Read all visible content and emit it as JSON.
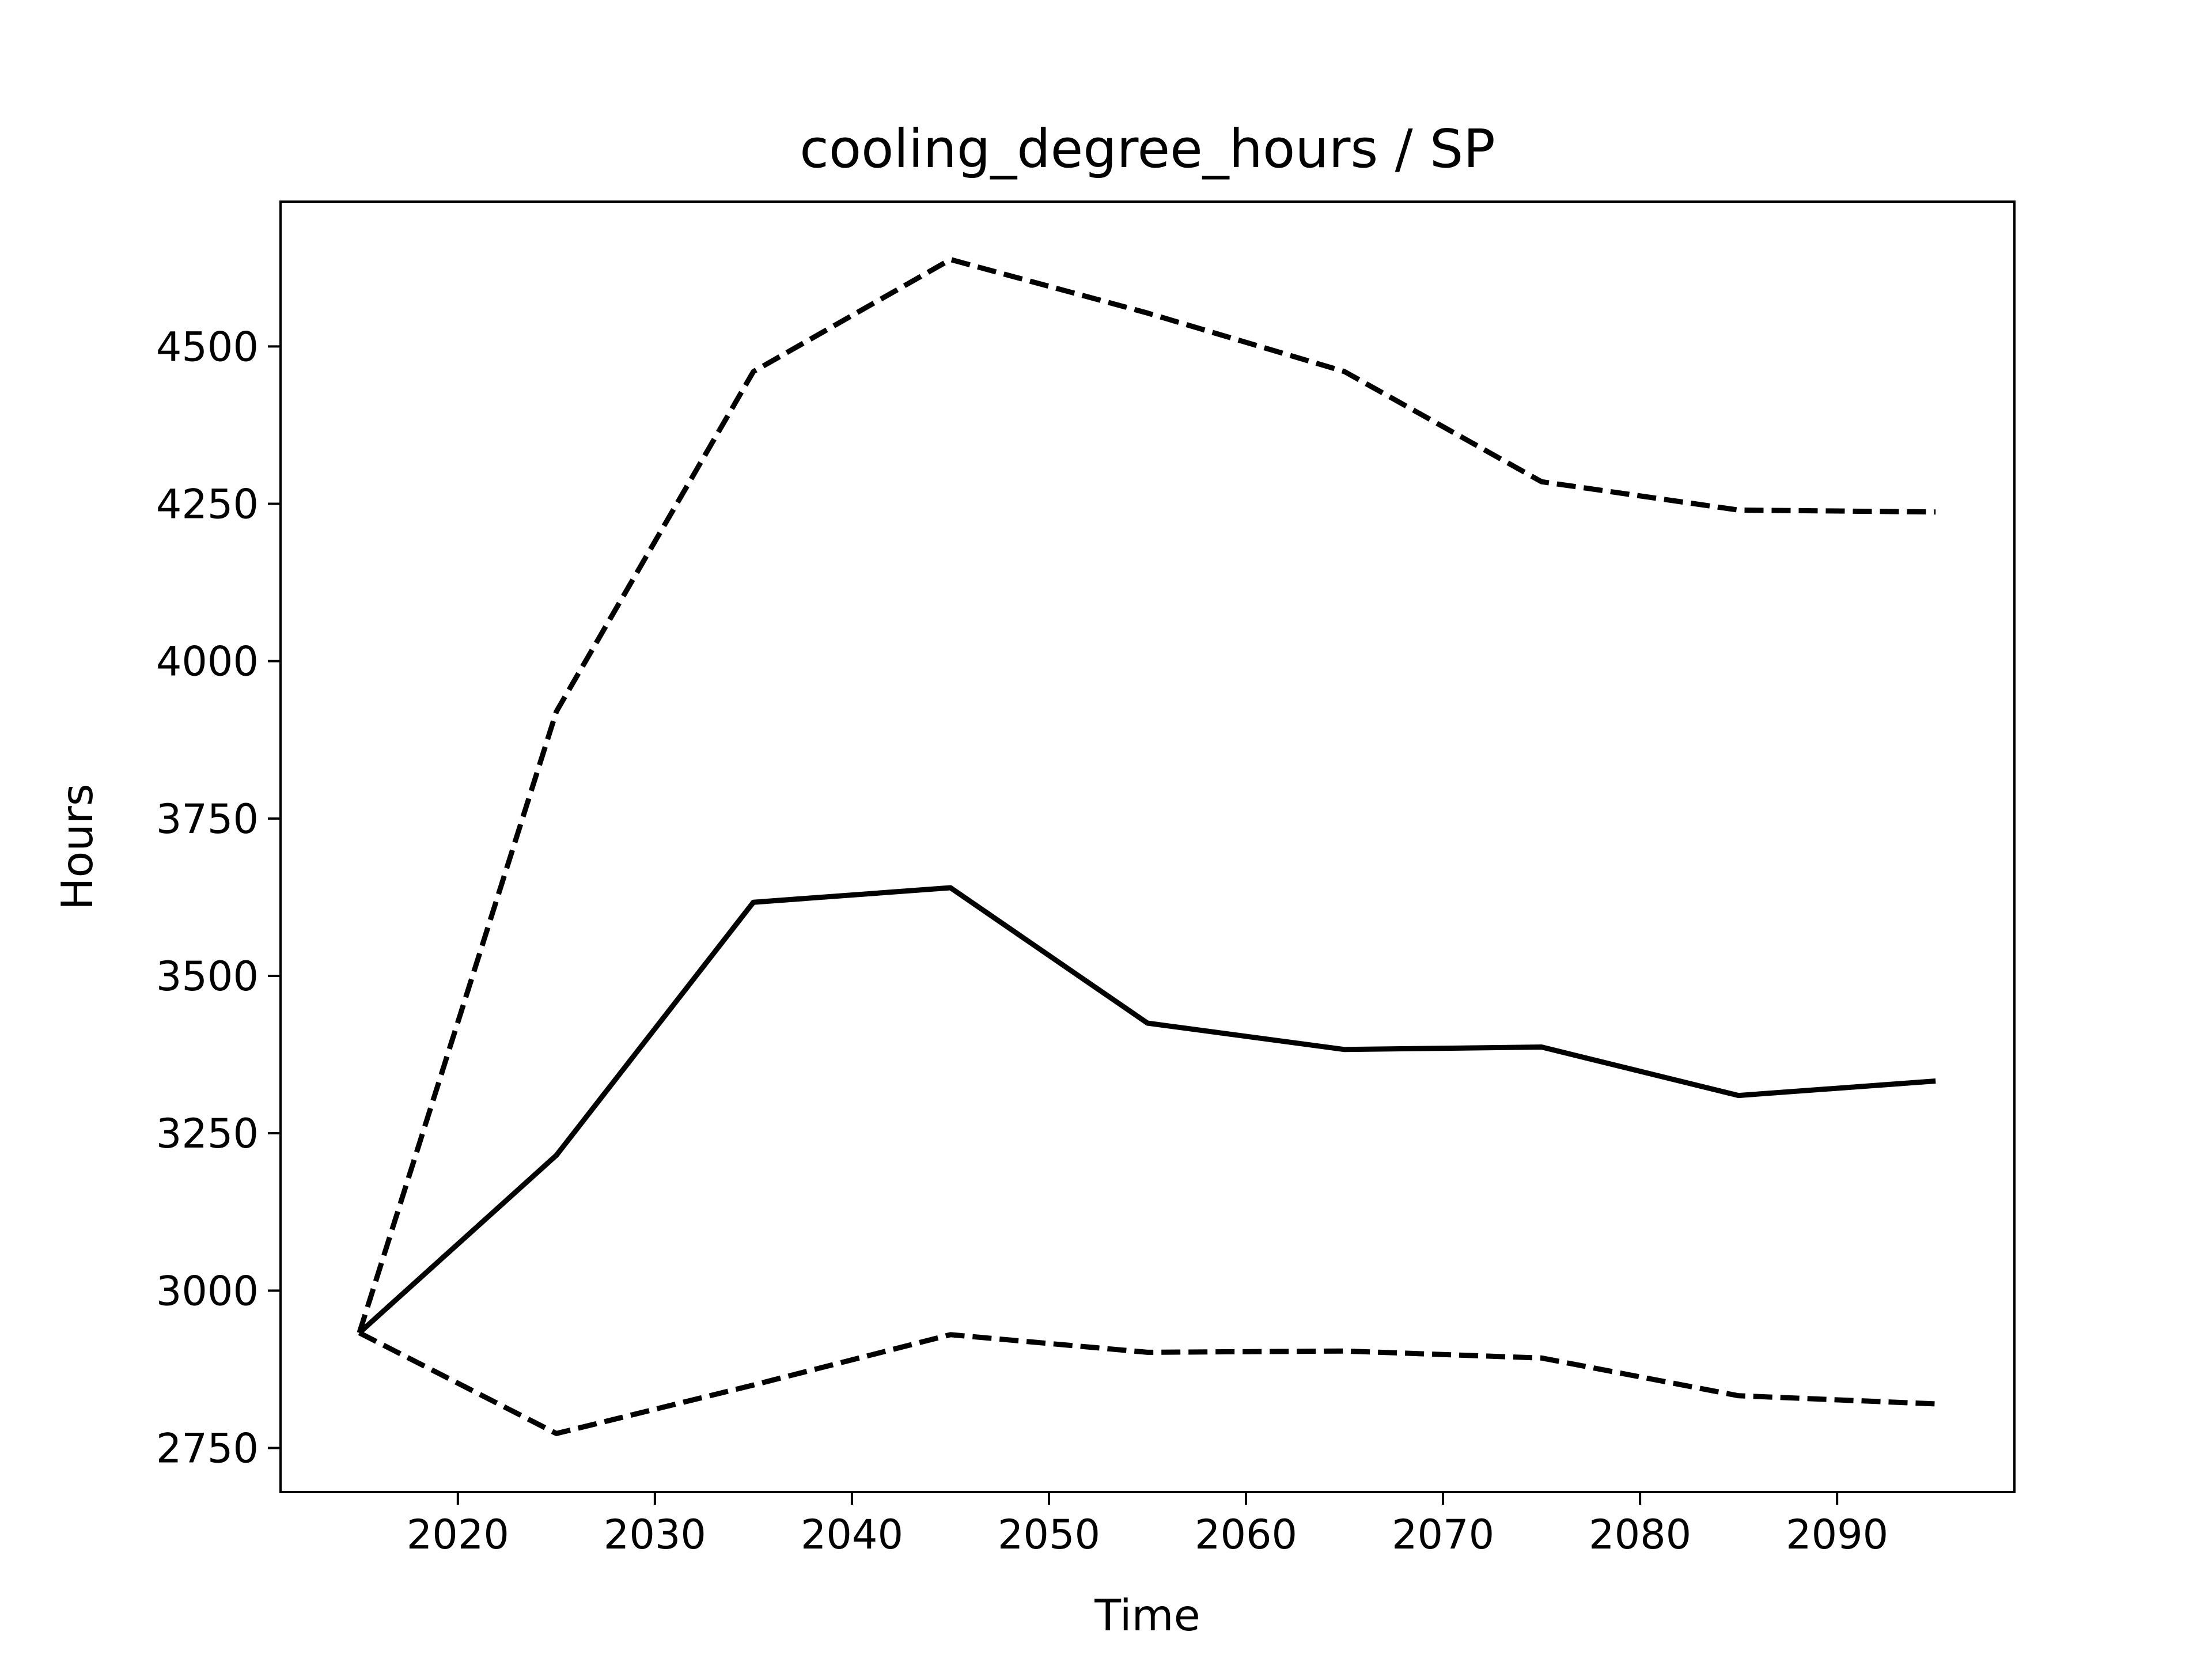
{
  "chart_data": {
    "type": "line",
    "title": "cooling_degree_hours / SP",
    "xlabel": "Time",
    "ylabel": "Hours",
    "xlim": [
      2011,
      2099
    ],
    "ylim": [
      2680,
      4730
    ],
    "xticks": [
      2020,
      2030,
      2040,
      2050,
      2060,
      2070,
      2080,
      2090
    ],
    "yticks": [
      2750,
      3000,
      3250,
      3500,
      3750,
      4000,
      4250,
      4500
    ],
    "grid": false,
    "legend": "none",
    "x": [
      2015,
      2025,
      2035,
      2045,
      2055,
      2065,
      2075,
      2085,
      2095
    ],
    "series": [
      {
        "style": "solid",
        "color": "#000000",
        "values": [
          2933,
          3215,
          3617,
          3640,
          3425,
          3383,
          3387,
          3310,
          3333
        ]
      },
      {
        "style": "dashed",
        "color": "#000000",
        "values": [
          2933,
          3920,
          4460,
          4638,
          4553,
          4460,
          4285,
          4240,
          4237
        ]
      },
      {
        "style": "dashed",
        "color": "#000000",
        "values": [
          2933,
          2773,
          2850,
          2930,
          2902,
          2904,
          2893,
          2833,
          2820
        ]
      }
    ]
  }
}
